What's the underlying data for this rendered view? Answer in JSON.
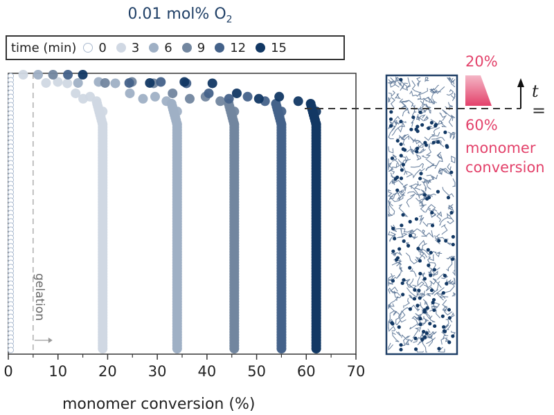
{
  "title": {
    "main": "0.01 mol% O",
    "subscript": "2"
  },
  "legend": {
    "label": "time (min)",
    "items": [
      {
        "label": "0",
        "color": "#ffffff",
        "stroke": "#a9b9cf"
      },
      {
        "label": "3",
        "color": "#d0d8e3"
      },
      {
        "label": "6",
        "color": "#9fb0c5"
      },
      {
        "label": "9",
        "color": "#72869f"
      },
      {
        "label": "12",
        "color": "#44628a"
      },
      {
        "label": "15",
        "color": "#123864"
      }
    ]
  },
  "annotations": {
    "top_pct": "20%",
    "bottom_pct": "60%",
    "line1": "monomer",
    "line2": "conversion",
    "t_label": "t =",
    "gelation": "gelation"
  },
  "colors": {
    "accent_pink": "#e3416a",
    "navy": "#1f3f66"
  },
  "chart_data": {
    "type": "scatter",
    "title": "0.01 mol% O2",
    "xlabel": "monomer conversion (%)",
    "ylabel": "",
    "xlim": [
      0,
      70
    ],
    "xticks": [
      0,
      10,
      20,
      30,
      40,
      50,
      60,
      70
    ],
    "gelation_x": 5,
    "legend_title": "time (min)",
    "legend_position": "top",
    "grid": false,
    "series": [
      {
        "name": "0",
        "plateau_conversion": 0.5,
        "description": "open circles stacked at ~0% across full depth"
      },
      {
        "name": "3",
        "plateau_conversion": 19,
        "surface_conversion": 3
      },
      {
        "name": "6",
        "plateau_conversion": 34,
        "surface_conversion": 6
      },
      {
        "name": "9",
        "plateau_conversion": 45.5,
        "surface_conversion": 9
      },
      {
        "name": "12",
        "plateau_conversion": 55,
        "surface_conversion": 12
      },
      {
        "name": "15",
        "plateau_conversion": 62,
        "surface_conversion": 15
      }
    ]
  }
}
